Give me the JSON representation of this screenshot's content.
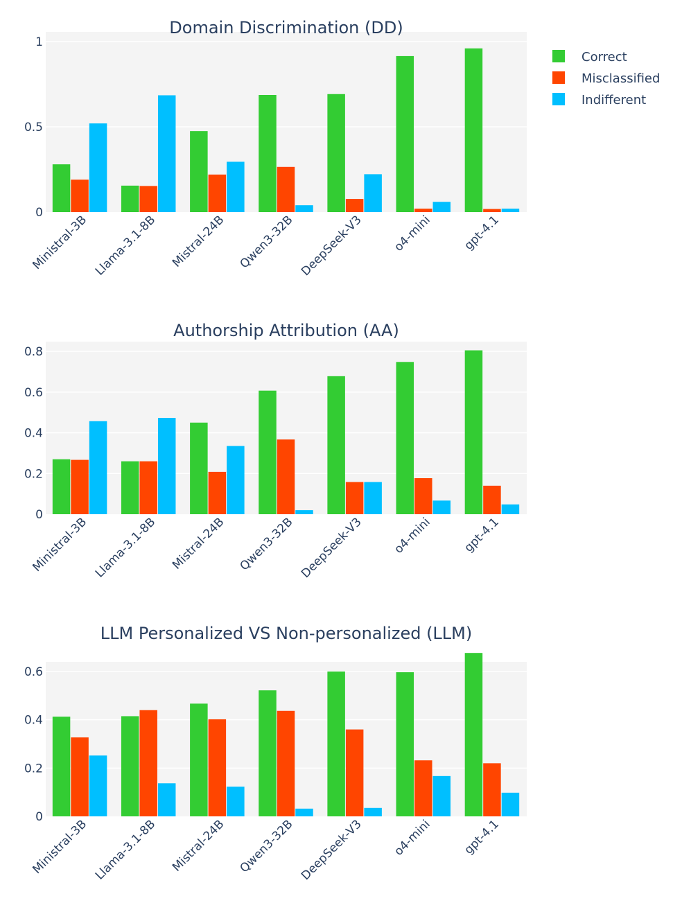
{
  "colors": {
    "Correct": "#33cc33",
    "Misclassified": "#ff4500",
    "Indifferent": "#00bfff",
    "plot_background": "#f4f4f4",
    "gridline": "#ffffff",
    "text": "#2a3f5f"
  },
  "legend": {
    "placement": "top-right",
    "items": [
      "Correct",
      "Misclassified",
      "Indifferent"
    ]
  },
  "chart_data": [
    {
      "type": "bar",
      "title": "Domain Discrimination (DD)",
      "categories": [
        "Ministral-3B",
        "Llama-3.1-8B",
        "Mistral-24B",
        "Qwen3-32B",
        "DeepSeek-V3",
        "o4-mini",
        "gpt-4.1"
      ],
      "series": [
        {
          "name": "Correct",
          "values": [
            0.28,
            0.155,
            0.475,
            0.687,
            0.692,
            0.915,
            0.96
          ]
        },
        {
          "name": "Misclassified",
          "values": [
            0.19,
            0.153,
            0.22,
            0.265,
            0.077,
            0.02,
            0.018
          ]
        },
        {
          "name": "Indifferent",
          "values": [
            0.52,
            0.685,
            0.295,
            0.04,
            0.222,
            0.06,
            0.02
          ]
        }
      ],
      "ylim": [
        0,
        1
      ],
      "yticks": [
        0,
        0.5,
        1
      ],
      "ytick_labels": [
        "0",
        "0.5",
        "1"
      ],
      "grid": true
    },
    {
      "type": "bar",
      "title": "Authorship Attribution (AA)",
      "categories": [
        "Ministral-3B",
        "Llama-3.1-8B",
        "Mistral-24B",
        "Qwen3-32B",
        "DeepSeek-V3",
        "o4-mini",
        "gpt-4.1"
      ],
      "series": [
        {
          "name": "Correct",
          "values": [
            0.27,
            0.26,
            0.45,
            0.607,
            0.678,
            0.748,
            0.805
          ]
        },
        {
          "name": "Misclassified",
          "values": [
            0.267,
            0.26,
            0.208,
            0.367,
            0.158,
            0.177,
            0.14
          ]
        },
        {
          "name": "Indifferent",
          "values": [
            0.457,
            0.473,
            0.335,
            0.02,
            0.158,
            0.067,
            0.048
          ]
        }
      ],
      "ylim": [
        0,
        0.8
      ],
      "yticks": [
        0,
        0.2,
        0.4,
        0.6,
        0.8
      ],
      "ytick_labels": [
        "0",
        "0.2",
        "0.4",
        "0.6",
        "0.8"
      ],
      "grid": true
    },
    {
      "type": "bar",
      "title": "LLM Personalized VS Non-personalized (LLM)",
      "categories": [
        "Ministral-3B",
        "Llama-3.1-8B",
        "Mistral-24B",
        "Qwen3-32B",
        "DeepSeek-V3",
        "o4-mini",
        "gpt-4.1"
      ],
      "series": [
        {
          "name": "Correct",
          "values": [
            0.413,
            0.415,
            0.467,
            0.522,
            0.6,
            0.597,
            0.677
          ]
        },
        {
          "name": "Misclassified",
          "values": [
            0.327,
            0.44,
            0.402,
            0.437,
            0.36,
            0.232,
            0.22
          ]
        },
        {
          "name": "Indifferent",
          "values": [
            0.252,
            0.137,
            0.123,
            0.032,
            0.035,
            0.167,
            0.098
          ]
        }
      ],
      "ylim": [
        0,
        0.6
      ],
      "yticks": [
        0,
        0.2,
        0.4,
        0.6
      ],
      "ytick_labels": [
        "0",
        "0.2",
        "0.4",
        "0.6"
      ],
      "grid": true
    }
  ]
}
